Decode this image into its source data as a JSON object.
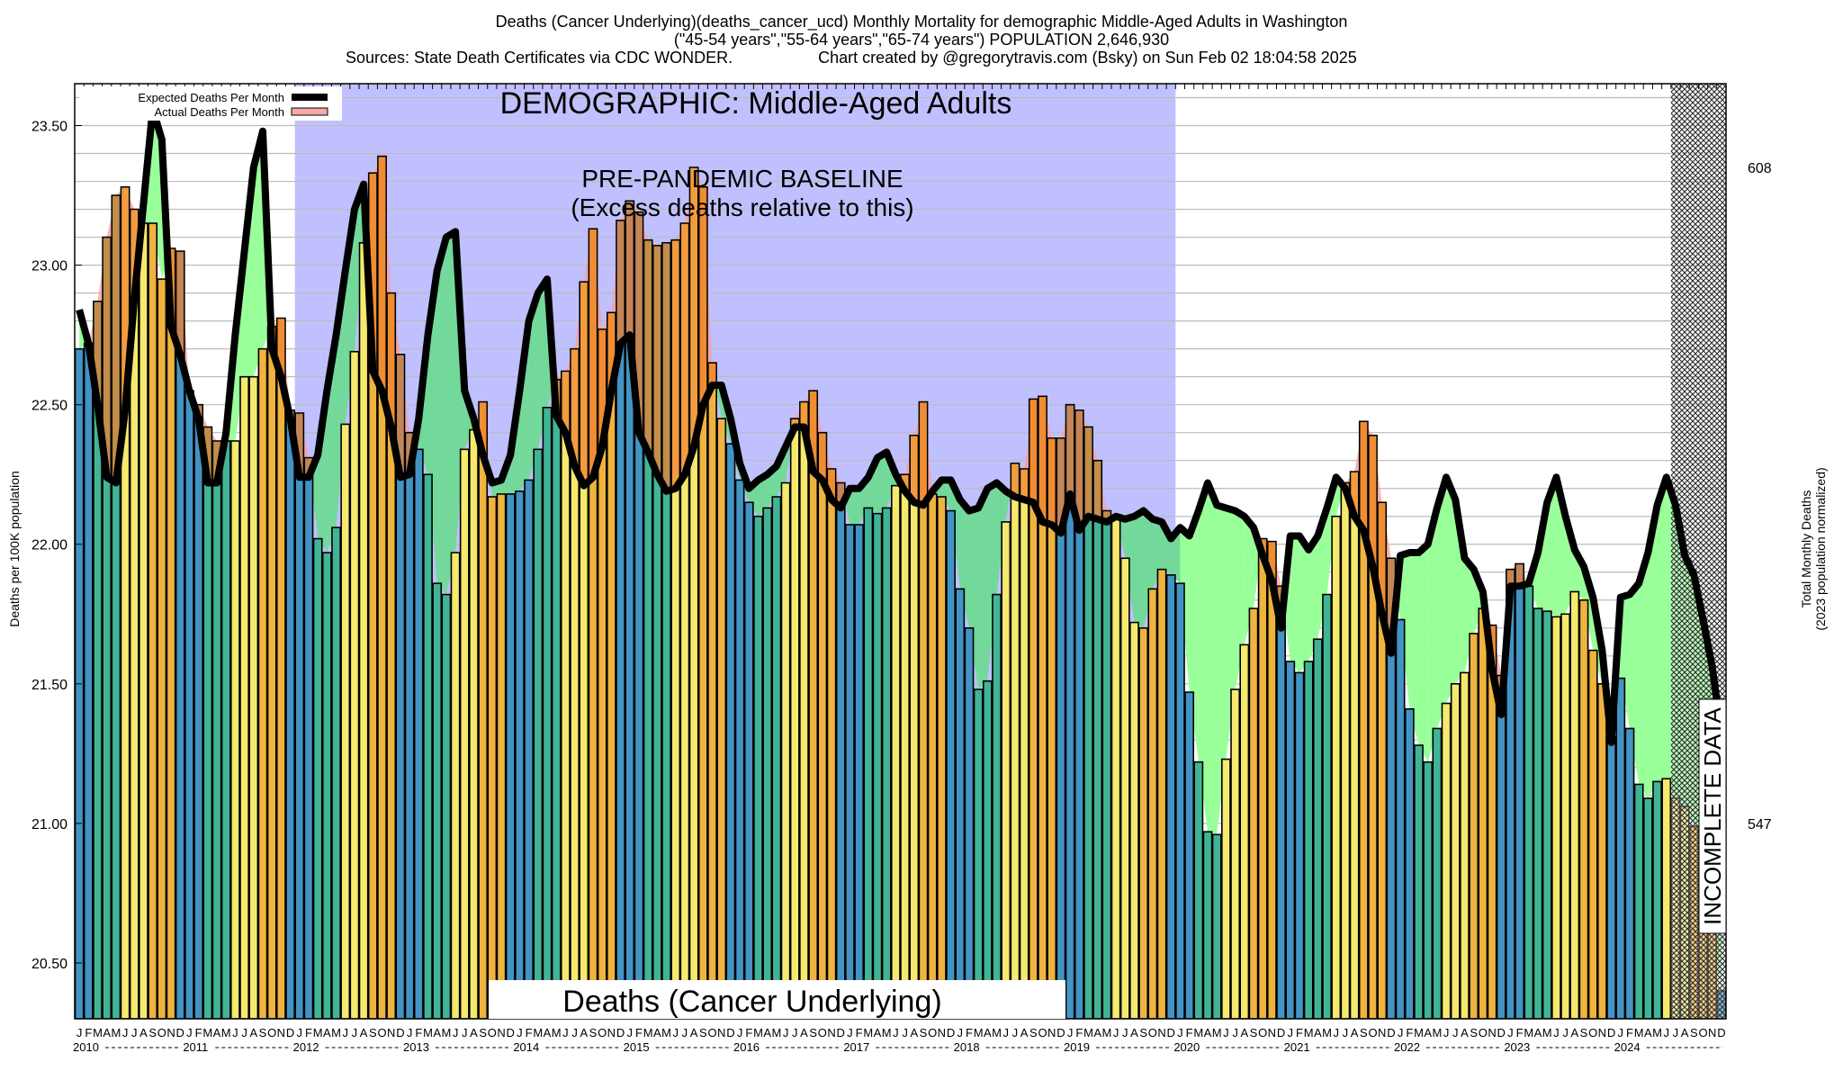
{
  "header": {
    "title_line1": "Deaths (Cancer Underlying)(deaths_cancer_ucd) Monthly Mortality for demographic Middle-Aged Adults in Washington",
    "title_line2": "(\"45-54 years\",\"55-64 years\",\"65-74 years\") POPULATION 2,646,930",
    "sources": "Sources: State Death Certificates via CDC WONDER.",
    "credit": "Chart created by @gregorytravis.com (Bsky) on Sun Feb 02 18:04:58 2025"
  },
  "chart_data": {
    "type": "bar",
    "title": "Deaths (Cancer Underlying)",
    "demographic_label": "DEMOGRAPHIC: Middle-Aged Adults",
    "baseline_label_line1": "PRE-PANDEMIC BASELINE",
    "baseline_label_line2": "(Excess deaths relative to this)",
    "baseline_period": [
      "2012-01",
      "2019-12"
    ],
    "incomplete_label": "INCOMPLETE DATA",
    "incomplete_period": [
      "2024-07",
      "2024-12"
    ],
    "ylabel": "Deaths per 100K population",
    "y2label_line1": "Total Monthly Deaths",
    "y2label_line2": "(2023 population normalized)",
    "ylim": [
      20.3,
      23.65
    ],
    "yticks": [
      "20.50",
      "21.00",
      "21.50",
      "22.00",
      "22.50",
      "23.00",
      "23.50"
    ],
    "y2ticks": [
      {
        "label": "547",
        "value": 21.0
      },
      {
        "label": "608",
        "value": 23.35
      }
    ],
    "grid": true,
    "legend": {
      "position": "top-left",
      "entries": [
        {
          "label": "Expected Deaths Per Month",
          "color": "#000000"
        },
        {
          "label": "Actual Deaths Per Month",
          "color": "#f4a8a8"
        }
      ]
    },
    "month_letters": [
      "J",
      "F",
      "M",
      "A",
      "M",
      "J",
      "J",
      "A",
      "S",
      "O",
      "N",
      "D"
    ],
    "years": [
      "2010",
      "2011",
      "2012",
      "2013",
      "2014",
      "2015",
      "2016",
      "2017",
      "2018",
      "2019",
      "2020",
      "2021",
      "2022",
      "2023",
      "2024"
    ],
    "season_colors": {
      "winter": "#4393c3",
      "spring": "#41b496",
      "summer": "#f5e96e",
      "fall": "#efb33f"
    },
    "fill_colors": {
      "deficit": "#99ff99",
      "excess": "#f08030",
      "baseline": "#c0c0ff"
    },
    "series": [
      {
        "name": "Actual Deaths Per Month",
        "values": [
          22.7,
          22.72,
          22.87,
          23.1,
          23.25,
          23.28,
          23.2,
          23.15,
          23.15,
          22.95,
          23.06,
          23.05,
          22.55,
          22.5,
          22.42,
          22.37,
          22.37,
          22.37,
          22.6,
          22.6,
          22.7,
          22.78,
          22.81,
          22.48,
          22.47,
          22.31,
          22.02,
          21.97,
          22.06,
          22.43,
          22.69,
          23.08,
          23.33,
          23.39,
          22.9,
          22.68,
          22.4,
          22.34,
          22.25,
          21.86,
          21.82,
          21.97,
          22.34,
          22.41,
          22.51,
          22.17,
          22.18,
          22.18,
          22.19,
          22.23,
          22.34,
          22.49,
          22.59,
          22.62,
          22.7,
          22.94,
          23.13,
          22.77,
          22.83,
          23.16,
          23.23,
          23.19,
          23.09,
          23.07,
          23.08,
          23.09,
          23.15,
          23.35,
          23.28,
          22.65,
          22.45,
          22.36,
          22.23,
          22.15,
          22.1,
          22.13,
          22.17,
          22.22,
          22.45,
          22.51,
          22.55,
          22.4,
          22.27,
          22.22,
          22.07,
          22.07,
          22.13,
          22.11,
          22.13,
          22.21,
          22.25,
          22.39,
          22.51,
          22.18,
          22.17,
          22.12,
          21.84,
          21.7,
          21.48,
          21.51,
          21.82,
          22.08,
          22.29,
          22.27,
          22.52,
          22.53,
          22.38,
          22.38,
          22.5,
          22.48,
          22.42,
          22.3,
          22.12,
          22.1,
          21.95,
          21.72,
          21.7,
          21.84,
          21.91,
          21.89,
          21.86,
          21.47,
          21.22,
          20.97,
          20.96,
          21.23,
          21.48,
          21.64,
          21.77,
          22.02,
          22.01,
          21.85,
          21.58,
          21.54,
          21.58,
          21.66,
          21.82,
          22.1,
          22.22,
          22.26,
          22.44,
          22.39,
          22.15,
          21.95,
          21.73,
          21.41,
          21.28,
          21.22,
          21.34,
          21.43,
          21.5,
          21.54,
          21.68,
          21.77,
          21.71,
          21.53,
          21.91,
          21.93,
          21.85,
          21.77,
          21.76,
          21.74,
          21.75,
          21.83,
          21.8,
          21.62,
          21.5,
          21.31,
          21.52,
          21.34,
          21.14,
          21.09,
          21.15,
          21.16,
          21.09,
          21.06,
          20.99,
          20.65,
          20.62,
          20.4
        ]
      },
      {
        "name": "Expected Deaths Per Month",
        "values": [
          22.84,
          22.72,
          22.5,
          22.24,
          22.22,
          22.48,
          22.88,
          23.22,
          23.56,
          23.45,
          22.78,
          22.68,
          22.55,
          22.45,
          22.22,
          22.22,
          22.4,
          22.75,
          23.05,
          23.35,
          23.48,
          22.7,
          22.6,
          22.45,
          22.24,
          22.24,
          22.32,
          22.55,
          22.75,
          22.98,
          23.2,
          23.29,
          22.62,
          22.55,
          22.42,
          22.24,
          22.25,
          22.45,
          22.75,
          22.98,
          23.1,
          23.12,
          22.55,
          22.45,
          22.32,
          22.22,
          22.23,
          22.32,
          22.55,
          22.8,
          22.9,
          22.95,
          22.46,
          22.4,
          22.28,
          22.21,
          22.24,
          22.35,
          22.55,
          22.72,
          22.75,
          22.4,
          22.33,
          22.25,
          22.19,
          22.2,
          22.25,
          22.35,
          22.5,
          22.57,
          22.57,
          22.45,
          22.29,
          22.2,
          22.23,
          22.25,
          22.28,
          22.35,
          22.42,
          22.42,
          22.26,
          22.23,
          22.16,
          22.13,
          22.2,
          22.2,
          22.24,
          22.31,
          22.33,
          22.25,
          22.19,
          22.15,
          22.14,
          22.19,
          22.23,
          22.23,
          22.16,
          22.12,
          22.13,
          22.2,
          22.22,
          22.19,
          22.17,
          22.16,
          22.15,
          22.08,
          22.07,
          22.04,
          22.18,
          22.05,
          22.1,
          22.09,
          22.08,
          22.1,
          22.09,
          22.1,
          22.12,
          22.09,
          22.08,
          22.02,
          22.06,
          22.03,
          22.12,
          22.22,
          22.14,
          22.13,
          22.12,
          22.1,
          22.06,
          21.96,
          21.87,
          21.7,
          22.03,
          22.03,
          21.98,
          22.03,
          22.13,
          22.24,
          22.2,
          22.1,
          22.05,
          21.92,
          21.75,
          21.61,
          21.96,
          21.97,
          21.97,
          22.0,
          22.13,
          22.24,
          22.16,
          21.95,
          21.91,
          21.83,
          21.55,
          21.39,
          21.85,
          21.85,
          21.86,
          21.97,
          22.15,
          22.24,
          22.1,
          21.98,
          21.92,
          21.81,
          21.62,
          21.29,
          21.81,
          21.82,
          21.86,
          21.97,
          22.14,
          22.24,
          22.14,
          21.96,
          21.89,
          21.73,
          21.56,
          21.32
        ]
      }
    ]
  }
}
